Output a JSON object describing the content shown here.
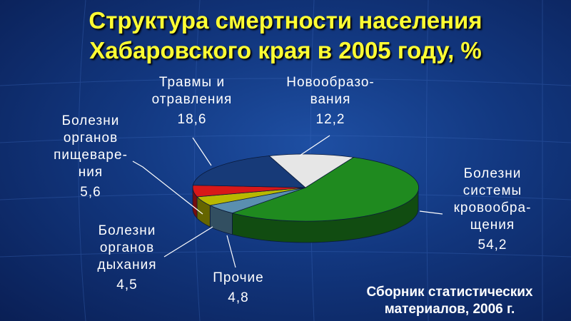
{
  "title_line1": "Структура смертности населения",
  "title_line2": "Хабаровского края в 2005 году, %",
  "source_line1": "Сборник статистических",
  "source_line2": "материалов, 2006 г.",
  "chart_data": {
    "type": "pie",
    "title": "Структура смертности населения Хабаровского края в 2005 году, %",
    "slices": [
      {
        "label": "Болезни системы кровообращения",
        "value": 54.2,
        "color": "#1f8a1f"
      },
      {
        "label": "Прочие",
        "value": 4.8,
        "color": "#5a8fb0"
      },
      {
        "label": "Болезни органов дыхания",
        "value": 4.5,
        "color": "#b8b800"
      },
      {
        "label": "Болезни органов пищеварения",
        "value": 5.6,
        "color": "#d81818"
      },
      {
        "label": "Травмы и отравления",
        "value": 18.6,
        "color": "#173a78"
      },
      {
        "label": "Новообразования",
        "value": 12.2,
        "color": "#e6e6e6"
      }
    ]
  },
  "labels": {
    "trauma": {
      "l1": "Травмы и",
      "l2": "отравления",
      "v": "18,6"
    },
    "neo": {
      "l1": "Новообразо-",
      "l2": "вания",
      "v": "12,2"
    },
    "digest": {
      "l1": "Болезни",
      "l2": "органов",
      "l3": "пищеваре-",
      "l4": "ния",
      "v": "5,6"
    },
    "resp": {
      "l1": "Болезни",
      "l2": "органов",
      "l3": "дыхания",
      "v": "4,5"
    },
    "other": {
      "l1": "Прочие",
      "v": "4,8"
    },
    "circ": {
      "l1": "Болезни",
      "l2": "системы",
      "l3": "кровообра-",
      "l4": "щения",
      "v": "54,2"
    }
  }
}
